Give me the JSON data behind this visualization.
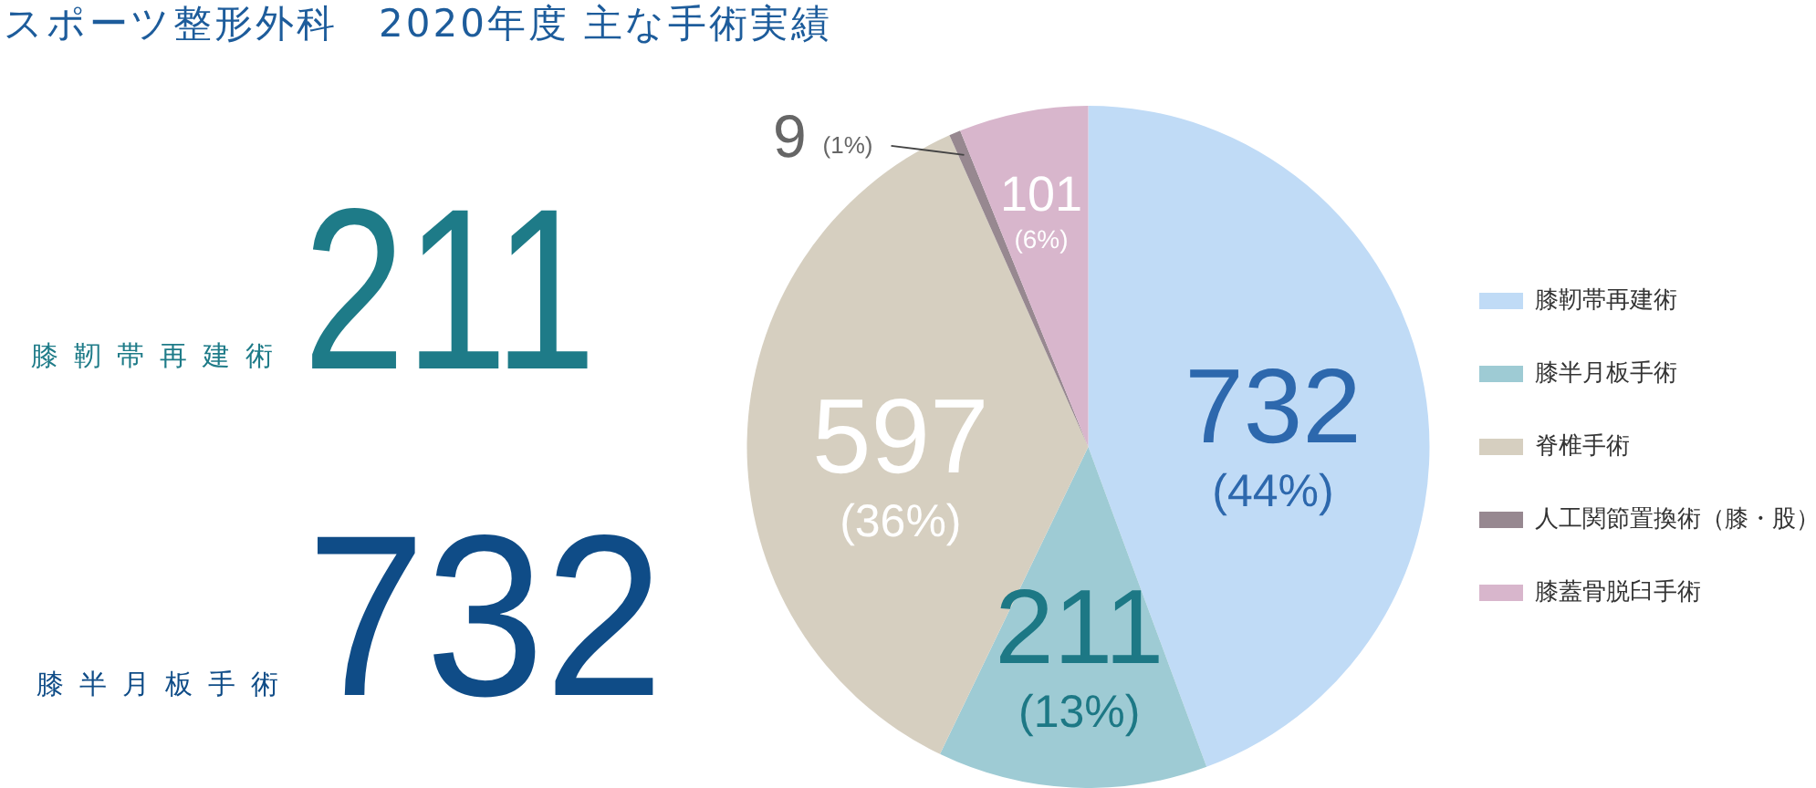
{
  "chart_data": {
    "type": "pie",
    "title": "スポーツ整形外科　2020年度 主な手術実績",
    "categories": [
      "膝靭帯再建術",
      "膝半月板手術",
      "脊椎手術",
      "人工関節置換術（膝・股）",
      "膝蓋骨脱臼手術"
    ],
    "values": [
      732,
      211,
      597,
      9,
      101
    ],
    "colors": [
      "#c0dbf6",
      "#9ecbd4",
      "#d6cfc0",
      "#978890",
      "#d8b6cc"
    ],
    "value_labels": [
      "732 (44%)",
      "211 (13%)",
      "597 (36%)",
      "9 (1%)",
      "101 (6%)"
    ],
    "legend": "right",
    "annotations": [
      "膝靭帯再建術",
      "211",
      "膝半月板手術",
      "732"
    ]
  }
}
